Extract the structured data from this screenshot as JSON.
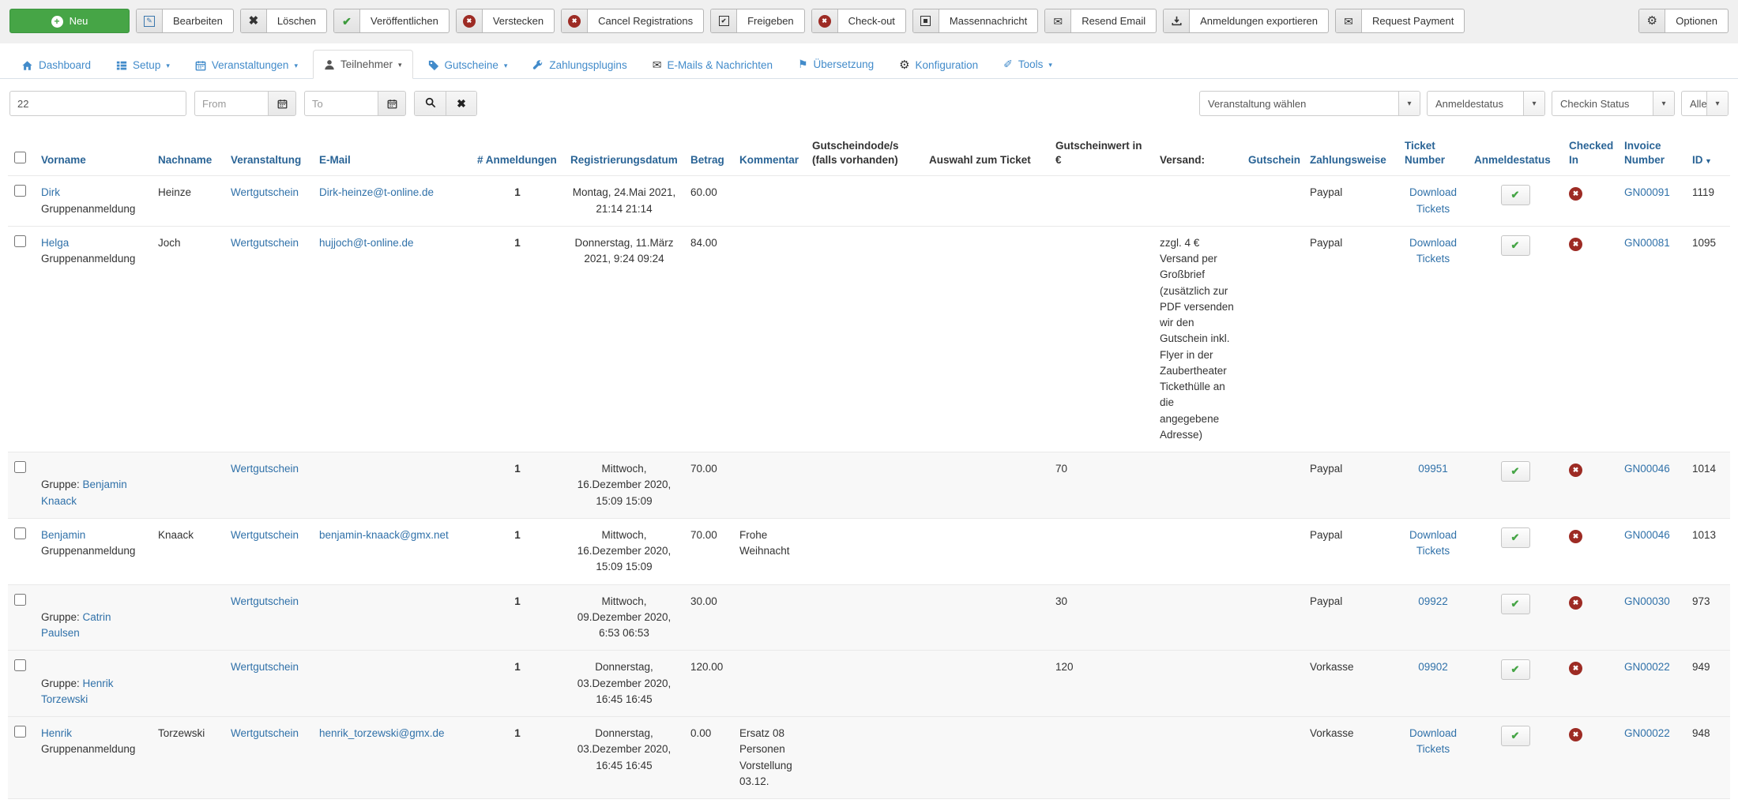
{
  "toolbar": {
    "buttons": [
      {
        "name": "neu-button",
        "label": "Neu",
        "icon": "plus-icon",
        "style": "success"
      },
      {
        "name": "bearbeiten-button",
        "label": "Bearbeiten",
        "icon": "edit-icon"
      },
      {
        "name": "loeschen-button",
        "label": "Löschen",
        "icon": "x-icon"
      },
      {
        "name": "veroeffentlichen-button",
        "label": "Veröffentlichen",
        "icon": "check-icon"
      },
      {
        "name": "verstecken-button",
        "label": "Verstecken",
        "icon": "ban-icon"
      },
      {
        "name": "cancel-registrations-button",
        "label": "Cancel Registrations",
        "icon": "ban-icon"
      },
      {
        "name": "freigeben-button",
        "label": "Freigeben",
        "icon": "checkbox-icon"
      },
      {
        "name": "check-out-button",
        "label": "Check-out",
        "icon": "ban-icon"
      },
      {
        "name": "massennachricht-button",
        "label": "Massennachricht",
        "icon": "square-icon"
      },
      {
        "name": "resend-email-button",
        "label": "Resend Email",
        "icon": "envelope-icon"
      },
      {
        "name": "anmeldungen-exportieren-button",
        "label": "Anmeldungen exportieren",
        "icon": "download-icon"
      },
      {
        "name": "request-payment-button",
        "label": "Request Payment",
        "icon": "envelope-icon"
      }
    ],
    "options_button": {
      "name": "optionen-button",
      "label": "Optionen",
      "icon": "gear-icon"
    }
  },
  "tabs": [
    {
      "name": "tab-dashboard",
      "label": "Dashboard",
      "icon": "home-icon",
      "dropdown": false,
      "active": false
    },
    {
      "name": "tab-setup",
      "label": "Setup",
      "icon": "list-icon",
      "dropdown": true,
      "active": false
    },
    {
      "name": "tab-veranstaltungen",
      "label": "Veranstaltungen",
      "icon": "calendar-icon",
      "dropdown": true,
      "active": false
    },
    {
      "name": "tab-teilnehmer",
      "label": "Teilnehmer",
      "icon": "person-icon",
      "dropdown": true,
      "active": true
    },
    {
      "name": "tab-gutscheine",
      "label": "Gutscheine",
      "icon": "tag-icon",
      "dropdown": true,
      "active": false
    },
    {
      "name": "tab-zahlungsplugins",
      "label": "Zahlungsplugins",
      "icon": "wrench-icon",
      "dropdown": false,
      "active": false
    },
    {
      "name": "tab-emails-nachrichten",
      "label": "E-Mails & Nachrichten",
      "icon": "envelope-icon",
      "dropdown": false,
      "active": false
    },
    {
      "name": "tab-uebersetzung",
      "label": "Übersetzung",
      "icon": "flag-icon",
      "dropdown": false,
      "active": false
    },
    {
      "name": "tab-konfiguration",
      "label": "Konfiguration",
      "icon": "gear-icon",
      "dropdown": false,
      "active": false
    },
    {
      "name": "tab-tools",
      "label": "Tools",
      "icon": "pencil-icon",
      "dropdown": true,
      "active": false
    }
  ],
  "filters": {
    "search_value": "22",
    "from_placeholder": "From",
    "to_placeholder": "To",
    "selects": [
      "Veranstaltung wählen",
      "Anmeldestatus",
      "Checkin Status",
      "Alle"
    ]
  },
  "table": {
    "headers": [
      {
        "key": "vorname",
        "label": "Vorname",
        "link": true
      },
      {
        "key": "nachname",
        "label": "Nachname",
        "link": true
      },
      {
        "key": "veranstaltung",
        "label": "Veranstaltung",
        "link": true
      },
      {
        "key": "email",
        "label": "E-Mail",
        "link": true
      },
      {
        "key": "anmeldungen",
        "label": "# Anmeldungen",
        "link": true
      },
      {
        "key": "registrierungsdatum",
        "label": "Registrierungsdatum",
        "link": true
      },
      {
        "key": "betrag",
        "label": "Betrag",
        "link": true
      },
      {
        "key": "kommentar",
        "label": "Kommentar",
        "link": true
      },
      {
        "key": "gutscheincode",
        "label": "Gutscheindode/s (falls vorhanden)",
        "link": false
      },
      {
        "key": "auswahl",
        "label": "Auswahl zum Ticket",
        "link": false
      },
      {
        "key": "gutscheinwert",
        "label": "Gutscheinwert in €",
        "link": false
      },
      {
        "key": "versand",
        "label": "Versand:",
        "link": false
      },
      {
        "key": "gutschein",
        "label": "Gutschein",
        "link": true
      },
      {
        "key": "zahlungsweise",
        "label": "Zahlungsweise",
        "link": true
      },
      {
        "key": "ticket",
        "label": "Ticket Number",
        "link": true
      },
      {
        "key": "anmeldestatus",
        "label": "Anmeldestatus",
        "link": true
      },
      {
        "key": "checkedin",
        "label": "Checked In",
        "link": true
      },
      {
        "key": "invoice",
        "label": "Invoice Number",
        "link": true
      },
      {
        "key": "id",
        "label": "ID",
        "link": true,
        "sorted": "desc"
      }
    ],
    "rows": [
      {
        "group": false,
        "vorname_link": "Dirk",
        "vorname_sub": "Gruppenanmeldung",
        "nachname": "Heinze",
        "veranstaltung": "Wertgutschein",
        "email": "Dirk-heinze@t-online.de",
        "anmeldungen": "1",
        "registrierungsdatum": "Montag, 24.Mai 2021, 21:14 21:14",
        "betrag": "60.00",
        "kommentar": "",
        "gutscheinwert": "",
        "versand": "",
        "zahlungsweise": "Paypal",
        "ticket_number": "Download Tickets",
        "anmeldestatus_checked": true,
        "checked_in": false,
        "invoice_number": "GN00091",
        "id": "1119",
        "shaded": false
      },
      {
        "group": false,
        "vorname_link": "Helga",
        "vorname_sub": "Gruppenanmeldung",
        "nachname": "Joch",
        "veranstaltung": "Wertgutschein",
        "email": "hujjoch@t-online.de",
        "anmeldungen": "1",
        "registrierungsdatum": "Donnerstag, 11.März 2021, 9:24 09:24",
        "betrag": "84.00",
        "kommentar": "",
        "gutscheinwert": "",
        "versand": "zzgl. 4 € Versand per Großbrief (zusätzlich zur PDF versenden wir den Gutschein inkl. Flyer in der Zaubertheater Tickethülle an die angegebene Adresse)",
        "zahlungsweise": "Paypal",
        "ticket_number": "Download Tickets",
        "anmeldestatus_checked": true,
        "checked_in": false,
        "invoice_number": "GN00081",
        "id": "1095",
        "shaded": false
      },
      {
        "group": true,
        "group_prefix": "Gruppe: ",
        "vorname_group_link": "Benjamin Knaack",
        "nachname": "",
        "veranstaltung": "Wertgutschein",
        "email": "",
        "anmeldungen": "1",
        "registrierungsdatum": "Mittwoch, 16.Dezember 2020, 15:09 15:09",
        "betrag": "70.00",
        "kommentar": "",
        "gutscheinwert": "70",
        "versand": "",
        "zahlungsweise": "Paypal",
        "ticket_number": "09951",
        "anmeldestatus_checked": true,
        "checked_in": false,
        "invoice_number": "GN00046",
        "id": "1014",
        "shaded": true
      },
      {
        "group": false,
        "vorname_link": "Benjamin",
        "vorname_sub": "Gruppenanmeldung",
        "nachname": "Knaack",
        "veranstaltung": "Wertgutschein",
        "email": "benjamin-knaack@gmx.net",
        "anmeldungen": "1",
        "registrierungsdatum": "Mittwoch, 16.Dezember 2020, 15:09 15:09",
        "betrag": "70.00",
        "kommentar": "Frohe Weihnacht",
        "gutscheinwert": "",
        "versand": "",
        "zahlungsweise": "Paypal",
        "ticket_number": "Download Tickets",
        "anmeldestatus_checked": true,
        "checked_in": false,
        "invoice_number": "GN00046",
        "id": "1013",
        "shaded": false
      },
      {
        "group": true,
        "group_prefix": "Gruppe: ",
        "vorname_group_link": "Catrin Paulsen",
        "nachname": "",
        "veranstaltung": "Wertgutschein",
        "email": "",
        "anmeldungen": "1",
        "registrierungsdatum": "Mittwoch, 09.Dezember 2020, 6:53 06:53",
        "betrag": "30.00",
        "kommentar": "",
        "gutscheinwert": "30",
        "versand": "",
        "zahlungsweise": "Paypal",
        "ticket_number": "09922",
        "anmeldestatus_checked": true,
        "checked_in": false,
        "invoice_number": "GN00030",
        "id": "973",
        "shaded": true
      },
      {
        "group": true,
        "group_prefix": "Gruppe: ",
        "vorname_group_link": "Henrik Torzewski",
        "nachname": "",
        "veranstaltung": "Wertgutschein",
        "email": "",
        "anmeldungen": "1",
        "registrierungsdatum": "Donnerstag, 03.Dezember 2020, 16:45 16:45",
        "betrag": "120.00",
        "kommentar": "",
        "gutscheinwert": "120",
        "versand": "",
        "zahlungsweise": "Vorkasse",
        "ticket_number": "09902",
        "anmeldestatus_checked": true,
        "checked_in": false,
        "invoice_number": "GN00022",
        "id": "949",
        "shaded": true
      },
      {
        "group": false,
        "vorname_link": "Henrik",
        "vorname_sub": "Gruppenanmeldung",
        "nachname": "Torzewski",
        "veranstaltung": "Wertgutschein",
        "email": "henrik_torzewski@gmx.de",
        "anmeldungen": "1",
        "registrierungsdatum": "Donnerstag, 03.Dezember 2020, 16:45 16:45",
        "betrag": "0.00",
        "kommentar": "Ersatz 08 Personen Vorstellung 03.12.",
        "gutscheinwert": "",
        "versand": "",
        "zahlungsweise": "Vorkasse",
        "ticket_number": "Download Tickets",
        "anmeldestatus_checked": true,
        "checked_in": false,
        "invoice_number": "GN00022",
        "id": "948",
        "shaded": true
      }
    ]
  },
  "colors": {
    "accent_green": "#46a546",
    "danger_red": "#9d2b24",
    "link_blue": "#3071a9",
    "header_link_blue": "#2a6496",
    "tab_blue": "#428bca"
  }
}
